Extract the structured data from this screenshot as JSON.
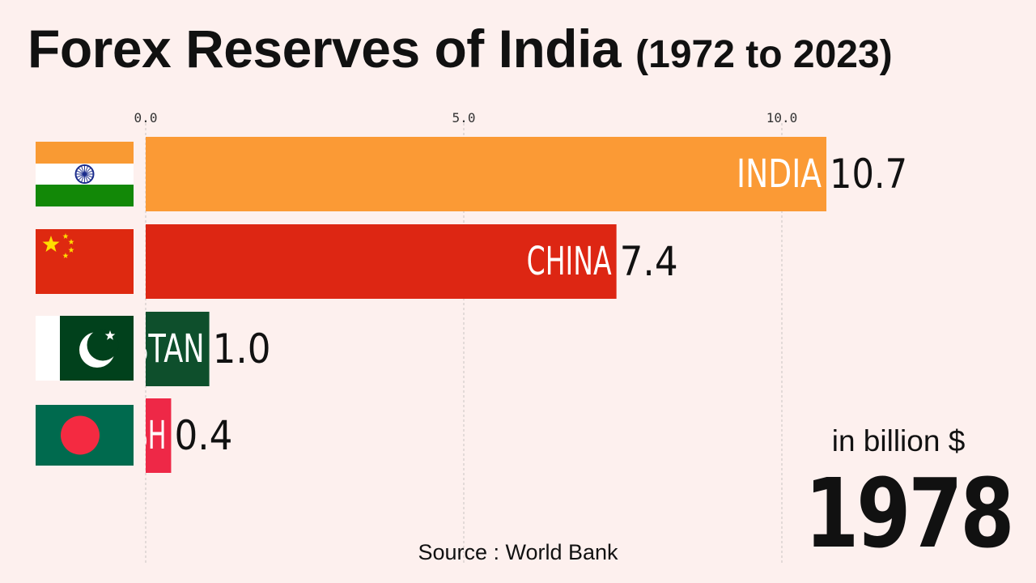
{
  "header": {
    "title": "Forex Reserves of India",
    "subtitle": "(1972 to 2023)"
  },
  "chart_data": {
    "type": "bar",
    "orientation": "horizontal",
    "xlim": [
      0,
      10.9
    ],
    "ticks": [
      "0.0",
      "5.0",
      "10.0"
    ],
    "grid": true,
    "bars": [
      {
        "label": "INDIA",
        "value": 10.7,
        "value_label": "10.7",
        "color": "#fb9a35",
        "flag_icon": "india-flag-icon"
      },
      {
        "label": "CHINA",
        "value": 7.4,
        "value_label": "7.4",
        "color": "#dd2613",
        "flag_icon": "china-flag-icon"
      },
      {
        "label": "PAKISTAN",
        "value": 1.0,
        "value_label": "1.0",
        "color": "#0e4f2c",
        "flag_icon": "pakistan-flag-icon"
      },
      {
        "label": "BANGLADESH",
        "value": 0.4,
        "value_label": "0.4",
        "color": "#ee2847",
        "flag_icon": "bangladesh-flag-icon"
      }
    ]
  },
  "unit_label": "in billion $",
  "year": "1978",
  "source": "Source : World Bank"
}
